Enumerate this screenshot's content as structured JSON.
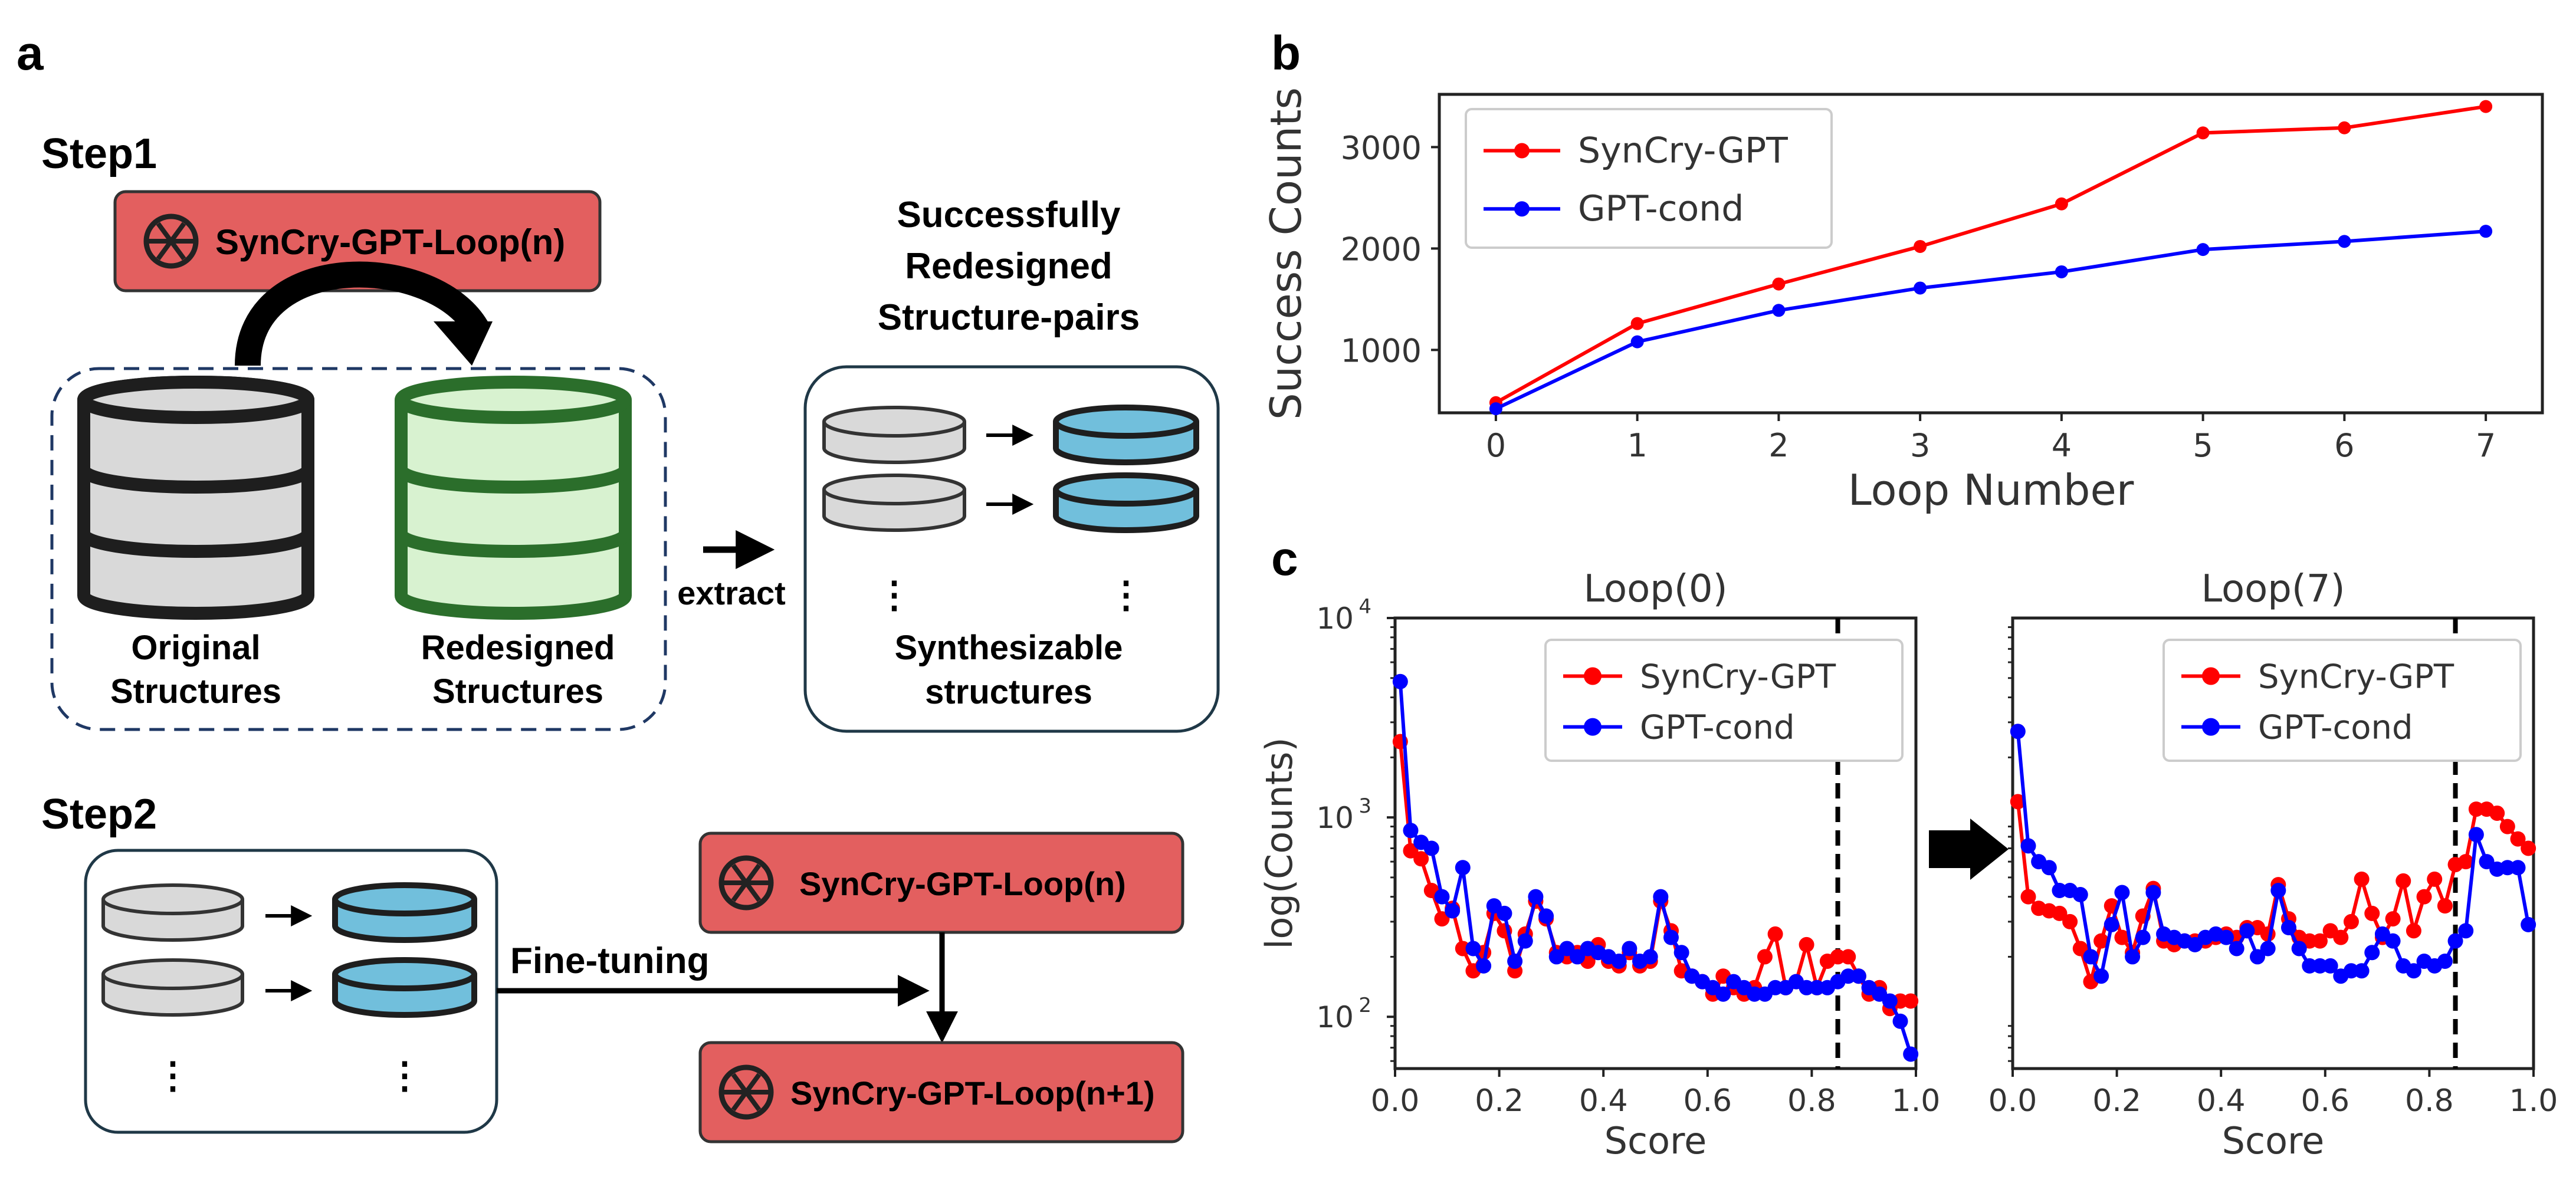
{
  "panel_a": {
    "label": "a",
    "step1": {
      "title": "Step1",
      "model_box": "SynCry-GPT-Loop(n)",
      "original_label": [
        "Original",
        "Structures"
      ],
      "redesigned_label": [
        "Redesigned",
        "Structures"
      ],
      "extract_label": "extract",
      "success_title": [
        "Successfully",
        "Redesigned",
        "Structure-pairs"
      ],
      "synth_label": [
        "Synthesizable",
        "structures"
      ],
      "dots": "⋮"
    },
    "step2": {
      "title": "Step2",
      "finetune_label": "Fine-tuning",
      "model_box_n": "SynCry-GPT-Loop(n)",
      "model_box_n1": "SynCry-GPT-Loop(n+1)",
      "dots": "⋮"
    },
    "colors": {
      "model_box": "#e35f5f",
      "db_gray": "#d9d9d9",
      "db_green_fill": "#d8f2d0",
      "db_green_stroke": "#2b6e2b",
      "db_blue": "#71bfdc"
    }
  },
  "chart_data": [
    {
      "panel": "b",
      "type": "line",
      "xlabel": "Loop Number",
      "ylabel": "Success Counts",
      "x": [
        0,
        1,
        2,
        3,
        4,
        5,
        6,
        7
      ],
      "xlim": [
        -0.4,
        7.4
      ],
      "ylim": [
        380,
        3520
      ],
      "yticks": [
        1000,
        2000,
        3000
      ],
      "grid": false,
      "legend": "top-left",
      "series": [
        {
          "name": "SynCry-GPT",
          "color": "#ff0000",
          "values": [
            480,
            1260,
            1650,
            2020,
            2440,
            3140,
            3190,
            3400
          ]
        },
        {
          "name": "GPT-cond",
          "color": "#0000ff",
          "values": [
            420,
            1080,
            1390,
            1610,
            1770,
            1990,
            2070,
            2170
          ]
        }
      ]
    },
    {
      "panel": "c",
      "title": "Loop(0)",
      "type": "line",
      "xlabel": "Score",
      "ylabel": "log(Counts)",
      "yscale": "log",
      "ylim": [
        55,
        10000
      ],
      "xlim": [
        0,
        1.0
      ],
      "xticks": [
        0.0,
        0.2,
        0.4,
        0.6,
        0.8,
        1.0
      ],
      "yticks": [
        100,
        1000,
        10000
      ],
      "ytick_labels": [
        {
          "base": "10",
          "exp": "2"
        },
        {
          "base": "10",
          "exp": "3"
        },
        {
          "base": "10",
          "exp": "4"
        }
      ],
      "threshold": 0.85,
      "legend": "top-right",
      "x": [
        0.01,
        0.03,
        0.05,
        0.07,
        0.09,
        0.11,
        0.13,
        0.15,
        0.17,
        0.19,
        0.21,
        0.23,
        0.25,
        0.27,
        0.29,
        0.31,
        0.33,
        0.35,
        0.37,
        0.39,
        0.41,
        0.43,
        0.45,
        0.47,
        0.49,
        0.51,
        0.53,
        0.55,
        0.57,
        0.59,
        0.61,
        0.63,
        0.65,
        0.67,
        0.69,
        0.71,
        0.73,
        0.75,
        0.77,
        0.79,
        0.81,
        0.83,
        0.85,
        0.87,
        0.89,
        0.91,
        0.93,
        0.95,
        0.97,
        0.99
      ],
      "series": [
        {
          "name": "SynCry-GPT",
          "color": "#ff0000",
          "values": [
            2400,
            680,
            620,
            430,
            310,
            350,
            220,
            170,
            210,
            330,
            270,
            170,
            260,
            380,
            310,
            210,
            200,
            210,
            190,
            230,
            190,
            180,
            210,
            180,
            190,
            380,
            270,
            170,
            160,
            150,
            130,
            160,
            140,
            130,
            140,
            200,
            260,
            140,
            150,
            230,
            140,
            190,
            200,
            200,
            160,
            130,
            140,
            110,
            120,
            120
          ]
        },
        {
          "name": "GPT-cond",
          "color": "#0000ff",
          "values": [
            4800,
            860,
            750,
            700,
            400,
            340,
            560,
            220,
            180,
            360,
            330,
            190,
            240,
            400,
            320,
            200,
            220,
            200,
            220,
            210,
            200,
            190,
            220,
            190,
            200,
            400,
            250,
            210,
            160,
            150,
            140,
            130,
            150,
            140,
            130,
            130,
            140,
            140,
            150,
            140,
            140,
            140,
            150,
            160,
            160,
            140,
            130,
            120,
            95,
            65
          ]
        }
      ]
    },
    {
      "panel": "c",
      "title": "Loop(7)",
      "type": "line",
      "xlabel": "Score",
      "yscale": "log",
      "ylim": [
        55,
        10000
      ],
      "xlim": [
        0,
        1.0
      ],
      "xticks": [
        0.0,
        0.2,
        0.4,
        0.6,
        0.8,
        1.0
      ],
      "threshold": 0.85,
      "legend": "top-right",
      "x": [
        0.01,
        0.03,
        0.05,
        0.07,
        0.09,
        0.11,
        0.13,
        0.15,
        0.17,
        0.19,
        0.21,
        0.23,
        0.25,
        0.27,
        0.29,
        0.31,
        0.33,
        0.35,
        0.37,
        0.39,
        0.41,
        0.43,
        0.45,
        0.47,
        0.49,
        0.51,
        0.53,
        0.55,
        0.57,
        0.59,
        0.61,
        0.63,
        0.65,
        0.67,
        0.69,
        0.71,
        0.73,
        0.75,
        0.77,
        0.79,
        0.81,
        0.83,
        0.85,
        0.87,
        0.89,
        0.91,
        0.93,
        0.95,
        0.97,
        0.99
      ],
      "series": [
        {
          "name": "SynCry-GPT",
          "color": "#ff0000",
          "values": [
            1200,
            400,
            350,
            340,
            330,
            300,
            220,
            150,
            240,
            360,
            250,
            210,
            320,
            440,
            240,
            230,
            240,
            240,
            240,
            250,
            260,
            250,
            280,
            280,
            260,
            460,
            310,
            250,
            240,
            240,
            270,
            250,
            300,
            490,
            330,
            250,
            310,
            480,
            270,
            400,
            490,
            360,
            580,
            600,
            1100,
            1100,
            1050,
            900,
            780,
            700
          ]
        },
        {
          "name": "GPT-cond",
          "color": "#0000ff",
          "values": [
            2700,
            720,
            600,
            560,
            430,
            430,
            410,
            200,
            160,
            290,
            420,
            200,
            250,
            420,
            260,
            250,
            240,
            230,
            250,
            260,
            250,
            220,
            270,
            200,
            220,
            430,
            280,
            220,
            180,
            180,
            180,
            160,
            170,
            170,
            210,
            260,
            240,
            180,
            170,
            190,
            180,
            190,
            240,
            270,
            820,
            600,
            550,
            560,
            560,
            290
          ]
        }
      ]
    }
  ]
}
